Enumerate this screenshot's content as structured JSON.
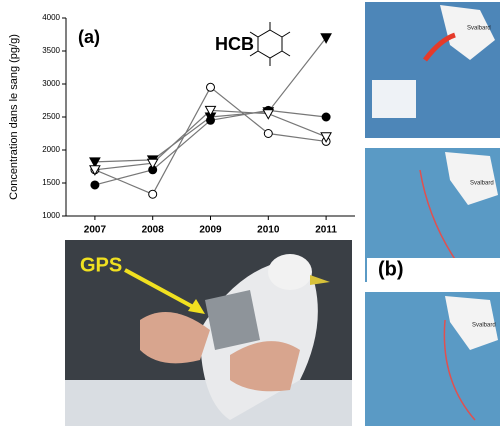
{
  "chart_data": {
    "type": "line",
    "annotations": [
      "(a)",
      "HCB"
    ],
    "y_label": "Concentration dans le sang (pg/g)",
    "categories": [
      "2007",
      "2008",
      "2009",
      "2010",
      "2011"
    ],
    "series": [
      {
        "color": "#000000",
        "marker": "circle",
        "filled": true,
        "values": [
          1470,
          1700,
          2450,
          2600,
          2500
        ]
      },
      {
        "color": "#000000",
        "marker": "circle",
        "filled": false,
        "values": [
          1700,
          1330,
          2950,
          2250,
          2130
        ]
      },
      {
        "color": "#000000",
        "marker": "triangle",
        "filled": true,
        "values": [
          1820,
          1850,
          2500,
          2580,
          3700
        ]
      },
      {
        "color": "#000000",
        "marker": "triangle",
        "filled": false,
        "values": [
          1700,
          1800,
          2600,
          2550,
          2200
        ]
      }
    ],
    "ylim": [
      1000,
      4000
    ],
    "yticks": [
      1000,
      1500,
      2000,
      2500,
      3000,
      3500,
      4000
    ]
  },
  "photo": {
    "label": "GPS"
  },
  "maps": {
    "label": "(b)",
    "places": [
      "Svalbard",
      "Svalbard",
      "Svalbard"
    ]
  }
}
